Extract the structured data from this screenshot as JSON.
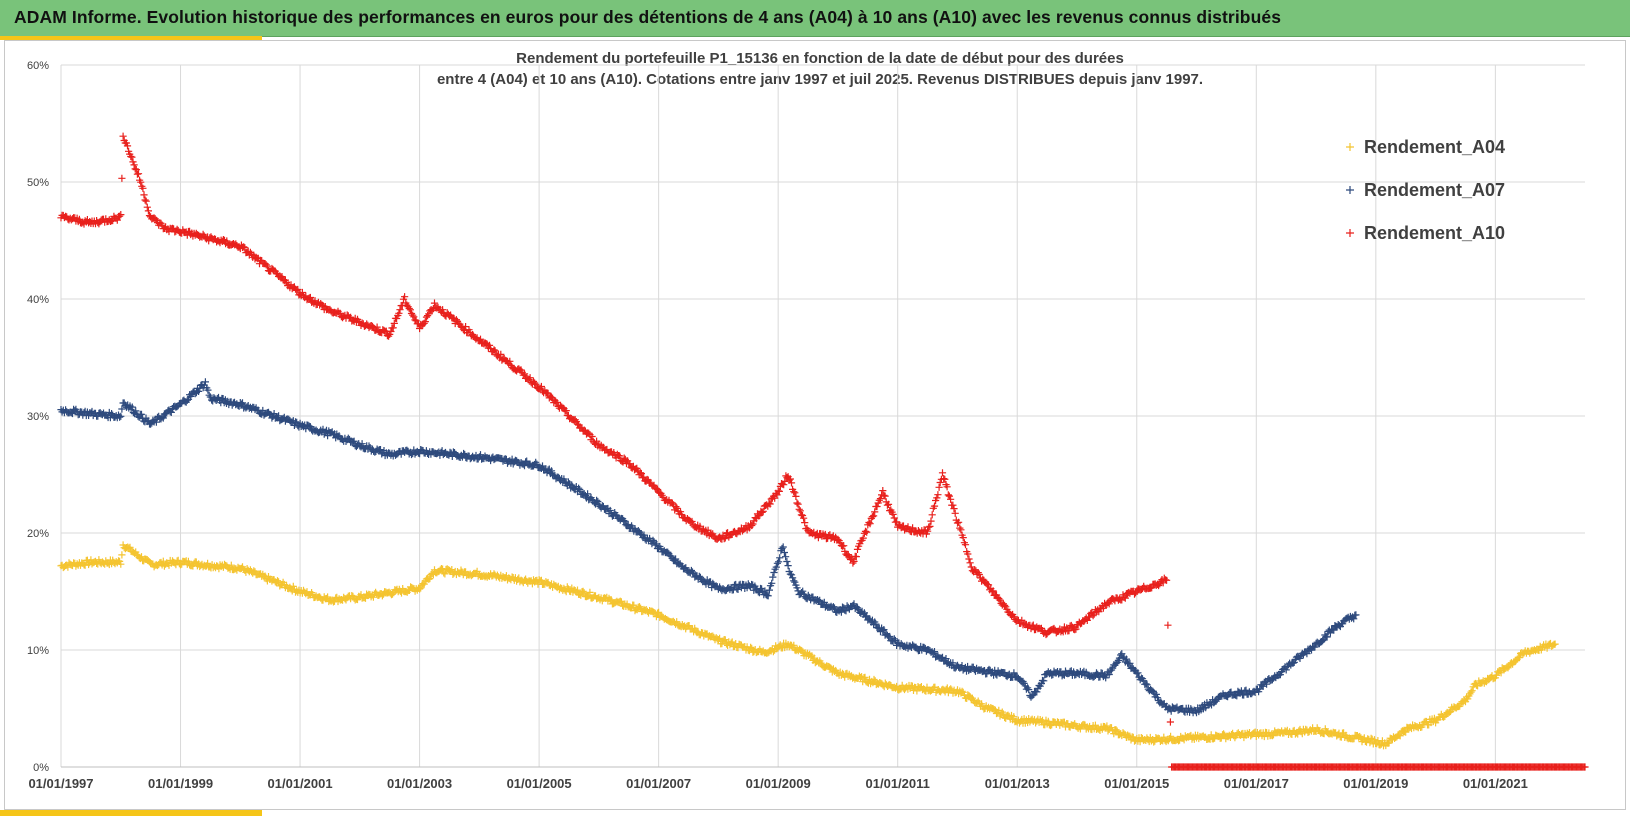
{
  "header": {
    "title": "ADAM Informe. Evolution historique des performances en euros pour des détentions de 4 ans (A04) à 10 ans (A10) avec les revenus connus distribués"
  },
  "colors": {
    "banner": "#79c37a",
    "accent": "#f5c518",
    "A04": "#f4c430",
    "A07": "#2e4a7d",
    "A10": "#e8201c"
  },
  "chart_data": {
    "type": "scatter",
    "title_line1": "Rendement du portefeuille P1_15136 en fonction de la date de début pour des durées",
    "title_line2": "entre 4 (A04) et 10 ans (A10). Cotations entre janv 1997 et juil 2025. Revenus DISTRIBUES depuis janv 1997.",
    "x_range": [
      "01/01/1997",
      "01/07/2022"
    ],
    "x_tick_labels": [
      "01/01/1997",
      "01/01/1999",
      "01/01/2001",
      "01/01/2003",
      "01/01/2005",
      "01/01/2007",
      "01/01/2009",
      "01/01/2011",
      "01/01/2013",
      "01/01/2015",
      "01/01/2017",
      "01/01/2019",
      "01/01/2021"
    ],
    "y_tick_labels": [
      "0%",
      "10%",
      "20%",
      "30%",
      "40%",
      "50%",
      "60%"
    ],
    "ylim": [
      0,
      60
    ],
    "grid": true,
    "legend_position": "top-right",
    "marker": "plus",
    "series": [
      {
        "name": "Rendement_A04",
        "color": "#f4c430",
        "points": [
          [
            "01/01/1997",
            17.2
          ],
          [
            "01/07/1997",
            17.5
          ],
          [
            "01/01/1998",
            17.5
          ],
          [
            "15/01/1998",
            19.0
          ],
          [
            "01/07/1998",
            17.3
          ],
          [
            "01/01/1999",
            17.5
          ],
          [
            "01/01/2000",
            17.0
          ],
          [
            "01/01/2001",
            15.0
          ],
          [
            "01/07/2001",
            14.3
          ],
          [
            "01/01/2002",
            14.5
          ],
          [
            "01/01/2003",
            15.3
          ],
          [
            "01/04/2003",
            16.8
          ],
          [
            "01/01/2004",
            16.5
          ],
          [
            "01/01/2005",
            15.8
          ],
          [
            "01/01/2006",
            14.5
          ],
          [
            "01/01/2007",
            13.0
          ],
          [
            "01/01/2008",
            10.8
          ],
          [
            "01/10/2008",
            9.8
          ],
          [
            "01/03/2009",
            10.5
          ],
          [
            "01/01/2010",
            8.0
          ],
          [
            "01/01/2011",
            6.8
          ],
          [
            "01/01/2012",
            6.5
          ],
          [
            "01/07/2012",
            5.0
          ],
          [
            "01/01/2013",
            4.0
          ],
          [
            "01/07/2013",
            3.8
          ],
          [
            "01/01/2014",
            3.5
          ],
          [
            "01/07/2014",
            3.3
          ],
          [
            "01/01/2015",
            2.3
          ],
          [
            "01/01/2016",
            2.5
          ],
          [
            "01/01/2017",
            2.8
          ],
          [
            "01/07/2017",
            2.9
          ],
          [
            "01/01/2018",
            3.2
          ],
          [
            "01/10/2018",
            2.4
          ],
          [
            "01/03/2019",
            2.0
          ],
          [
            "01/07/2019",
            3.2
          ],
          [
            "01/01/2020",
            4.0
          ],
          [
            "01/07/2020",
            5.7
          ],
          [
            "01/09/2020",
            7.0
          ],
          [
            "01/01/2021",
            7.8
          ],
          [
            "01/07/2021",
            9.8
          ],
          [
            "01/01/2022",
            10.5
          ]
        ]
      },
      {
        "name": "Rendement_A07",
        "color": "#2e4a7d",
        "points": [
          [
            "01/01/1997",
            30.5
          ],
          [
            "01/07/1997",
            30.2
          ],
          [
            "01/01/1998",
            30.0
          ],
          [
            "15/01/1998",
            31.2
          ],
          [
            "01/07/1998",
            29.3
          ],
          [
            "01/01/1999",
            31.0
          ],
          [
            "01/06/1999",
            32.8
          ],
          [
            "01/07/1999",
            31.5
          ],
          [
            "01/01/2000",
            31.0
          ],
          [
            "01/01/2001",
            29.2
          ],
          [
            "01/07/2001",
            28.5
          ],
          [
            "01/01/2002",
            27.5
          ],
          [
            "01/07/2002",
            26.7
          ],
          [
            "01/01/2003",
            27.0
          ],
          [
            "01/01/2004",
            26.5
          ],
          [
            "01/01/2005",
            25.8
          ],
          [
            "01/01/2006",
            22.5
          ],
          [
            "01/01/2007",
            18.8
          ],
          [
            "01/06/2007",
            17.0
          ],
          [
            "01/01/2008",
            15.2
          ],
          [
            "01/07/2008",
            15.5
          ],
          [
            "01/11/2008",
            14.8
          ],
          [
            "01/02/2009",
            19.0
          ],
          [
            "01/03/2009",
            17.0
          ],
          [
            "01/05/2009",
            15.0
          ],
          [
            "01/01/2010",
            13.3
          ],
          [
            "01/04/2010",
            13.8
          ],
          [
            "01/01/2011",
            10.5
          ],
          [
            "01/07/2011",
            10.0
          ],
          [
            "01/01/2012",
            8.5
          ],
          [
            "01/01/2013",
            7.8
          ],
          [
            "01/04/2013",
            6.0
          ],
          [
            "01/07/2013",
            8.0
          ],
          [
            "01/01/2014",
            8.0
          ],
          [
            "01/07/2014",
            7.8
          ],
          [
            "01/10/2014",
            9.5
          ],
          [
            "01/01/2015",
            8.0
          ],
          [
            "01/07/2015",
            5.0
          ],
          [
            "01/01/2016",
            4.8
          ],
          [
            "01/07/2016",
            6.2
          ],
          [
            "01/01/2017",
            6.5
          ],
          [
            "01/07/2017",
            8.5
          ],
          [
            "01/01/2018",
            10.5
          ],
          [
            "01/05/2018",
            12.0
          ],
          [
            "01/09/2018",
            13.0
          ]
        ]
      },
      {
        "name": "Rendement_A10",
        "color": "#e8201c",
        "points": [
          [
            "01/01/1997",
            47.0
          ],
          [
            "01/07/1997",
            46.5
          ],
          [
            "01/01/1998",
            47.0
          ],
          [
            "15/01/1998",
            54.0
          ],
          [
            "01/05/1998",
            50.0
          ],
          [
            "01/07/1998",
            47.0
          ],
          [
            "01/10/1998",
            46.0
          ],
          [
            "01/01/1999",
            45.8
          ],
          [
            "01/01/2000",
            44.5
          ],
          [
            "01/01/2001",
            40.5
          ],
          [
            "01/07/2001",
            39.0
          ],
          [
            "01/01/2002",
            38.0
          ],
          [
            "01/07/2002",
            37.0
          ],
          [
            "01/10/2002",
            40.0
          ],
          [
            "01/01/2003",
            37.5
          ],
          [
            "01/04/2003",
            39.5
          ],
          [
            "01/01/2004",
            36.5
          ],
          [
            "01/01/2005",
            32.5
          ],
          [
            "01/01/2006",
            27.5
          ],
          [
            "01/07/2006",
            26.0
          ],
          [
            "01/01/2007",
            23.5
          ],
          [
            "01/07/2007",
            21.0
          ],
          [
            "01/01/2008",
            19.5
          ],
          [
            "01/07/2008",
            20.5
          ],
          [
            "01/01/2009",
            23.5
          ],
          [
            "01/03/2009",
            25.0
          ],
          [
            "01/07/2009",
            20.0
          ],
          [
            "01/01/2010",
            19.5
          ],
          [
            "01/04/2010",
            17.5
          ],
          [
            "01/10/2010",
            23.5
          ],
          [
            "01/01/2011",
            20.5
          ],
          [
            "01/07/2011",
            20.0
          ],
          [
            "01/10/2011",
            25.0
          ],
          [
            "01/04/2012",
            17.0
          ],
          [
            "01/10/2012",
            14.0
          ],
          [
            "01/01/2013",
            12.5
          ],
          [
            "01/07/2013",
            11.5
          ],
          [
            "01/01/2014",
            12.0
          ],
          [
            "01/07/2014",
            14.0
          ],
          [
            "01/01/2015",
            15.0
          ],
          [
            "01/07/2015",
            16.0
          ],
          [
            "01/08/2015",
            0.0
          ],
          [
            "01/01/2017",
            0.0
          ],
          [
            "01/01/2019",
            0.0
          ],
          [
            "01/01/2021",
            0.0
          ],
          [
            "01/07/2022",
            0.0
          ]
        ]
      }
    ]
  }
}
